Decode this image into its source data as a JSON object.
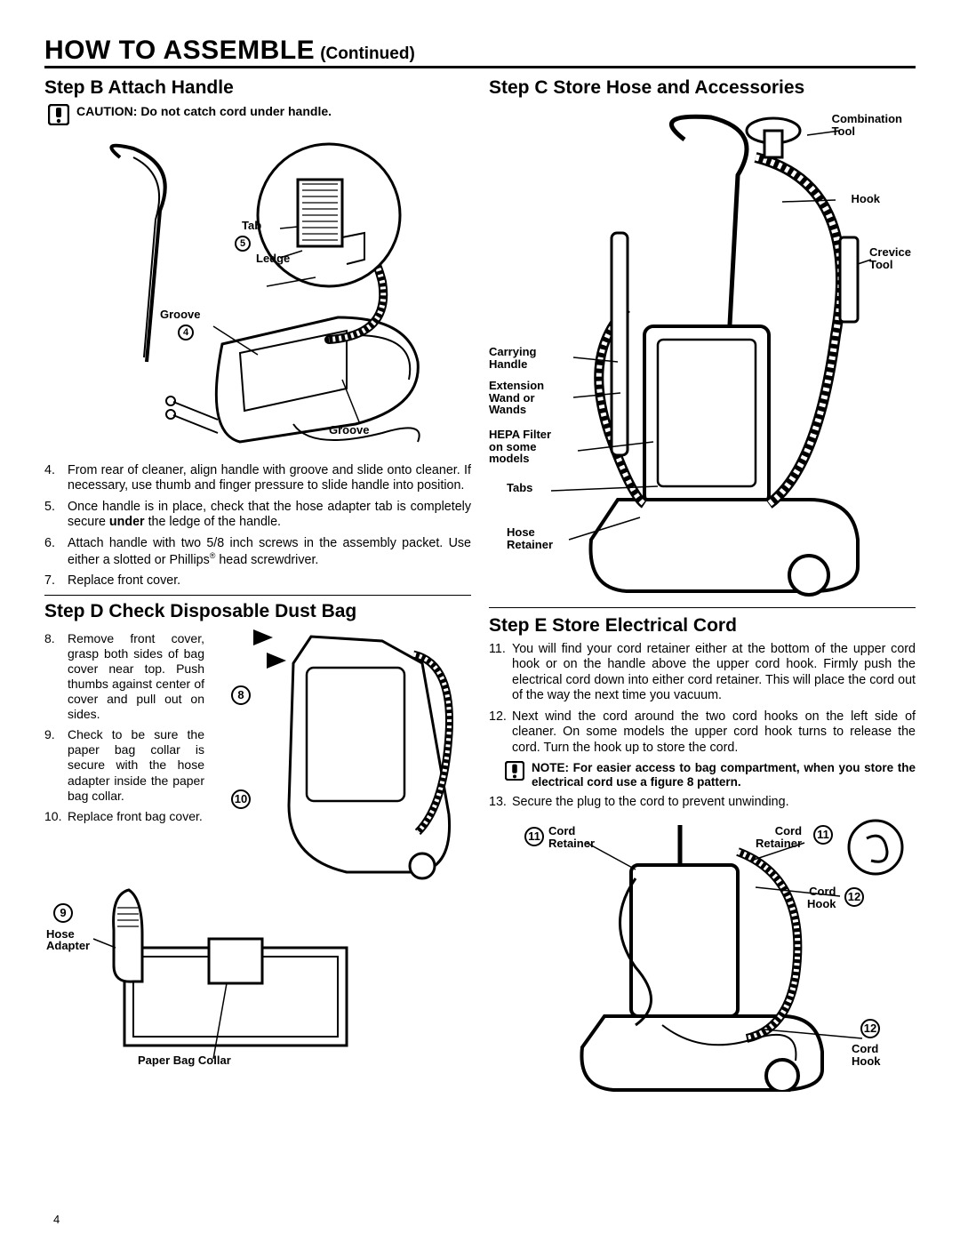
{
  "page_title_main": "HOW TO ASSEMBLE",
  "page_title_cont": "(Continued)",
  "page_number": "4",
  "left": {
    "stepB": {
      "heading": "Step B  Attach Handle",
      "caution": "CAUTION:  Do not catch cord under handle.",
      "labels": {
        "tab": "Tab",
        "ledge": "Ledge",
        "groove1": "Groove",
        "groove2": "Groove",
        "n4": "4",
        "n5": "5"
      },
      "items": [
        {
          "n": "4.",
          "t": "From rear of cleaner, align handle with groove and slide onto cleaner. If necessary, use thumb and finger pressure to slide handle into position."
        },
        {
          "n": "5.",
          "t": "Once handle is in place, check that the hose adapter tab is completely secure <b>under</b> the ledge of the handle."
        },
        {
          "n": "6.",
          "t": "Attach handle with two 5/8 inch screws in the assembly packet. Use either a slotted or Phillips<sup>®</sup> head screwdriver."
        },
        {
          "n": "7.",
          "t": "Replace front cover."
        }
      ]
    },
    "stepD": {
      "heading": "Step D  Check Disposable Dust Bag",
      "items": [
        {
          "n": "8.",
          "t": "Remove front cover, grasp both sides of bag cover near top. Push thumbs against center of cover and pull out on sides."
        },
        {
          "n": "9.",
          "t": "Check to be sure the paper bag collar is secure with the hose adapter inside the paper bag collar."
        },
        {
          "n": "10.",
          "t": "Replace front bag cover."
        }
      ],
      "labels": {
        "n8": "8",
        "n9": "9",
        "n10": "10",
        "hose_adapter": "Hose\nAdapter",
        "paper_bag_collar": "Paper Bag Collar"
      }
    }
  },
  "right": {
    "stepC": {
      "heading": "Step C  Store Hose and Accessories",
      "labels": {
        "combination_tool": "Combination\nTool",
        "hook": "Hook",
        "crevice_tool": "Crevice\nTool",
        "carrying_handle": "Carrying\nHandle",
        "extension": "Extension\nWand or\nWands",
        "hepa": "HEPA Filter\non some\nmodels",
        "tabs": "Tabs",
        "hose_retainer": "Hose\nRetainer"
      }
    },
    "stepE": {
      "heading": "Step E  Store Electrical Cord",
      "items": [
        {
          "n": "11.",
          "t": "You will find your cord retainer either at the bottom of the upper cord hook or on the handle above the upper cord hook. Firmly push the electrical cord down into either cord retainer. This will place the cord out of the way the next time you vacuum."
        },
        {
          "n": "12.",
          "t": "Next wind the cord around the two cord hooks on the left side of cleaner. On some models the upper cord hook turns to release the cord. Turn the hook up to store the cord."
        }
      ],
      "note": "NOTE: For easier access to bag compartment, when you store the electrical cord use a figure 8 pattern.",
      "items2": [
        {
          "n": "13.",
          "t": "Secure the plug to the cord to prevent unwinding."
        }
      ],
      "labels": {
        "n11": "11",
        "n12": "12",
        "cord_retainer": "Cord\nRetainer",
        "cord_hook": "Cord\nHook"
      }
    }
  },
  "colors": {
    "text": "#000000",
    "bg": "#ffffff"
  }
}
